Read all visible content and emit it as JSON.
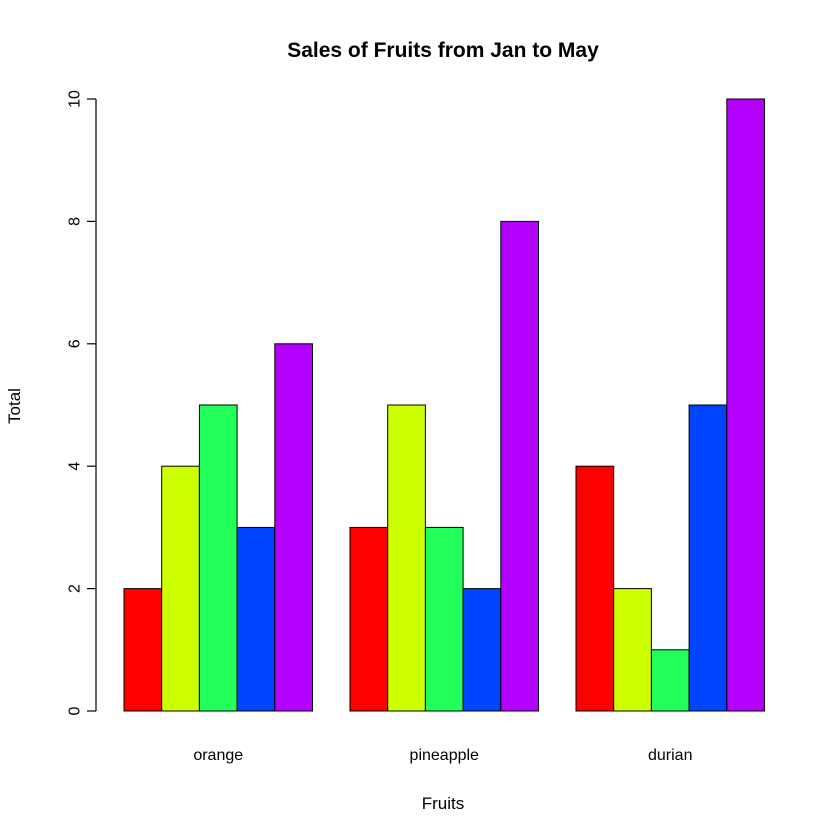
{
  "chart_data": {
    "type": "bar",
    "title": "Sales of Fruits from Jan to May",
    "xlabel": "Fruits",
    "ylabel": "Total",
    "categories": [
      "orange",
      "pineapple",
      "durian"
    ],
    "series": [
      {
        "values": [
          2,
          3,
          4
        ],
        "color": "#ff0000"
      },
      {
        "values": [
          4,
          5,
          2
        ],
        "color": "#ccff00"
      },
      {
        "values": [
          5,
          3,
          1
        ],
        "color": "#22ff5a"
      },
      {
        "values": [
          3,
          2,
          5
        ],
        "color": "#0044ff"
      },
      {
        "values": [
          6,
          8,
          10
        ],
        "color": "#b300ff"
      }
    ],
    "ylim": [
      0,
      10
    ],
    "yticks": [
      0,
      2,
      4,
      6,
      8,
      10
    ],
    "grid": false,
    "legend": "none"
  }
}
